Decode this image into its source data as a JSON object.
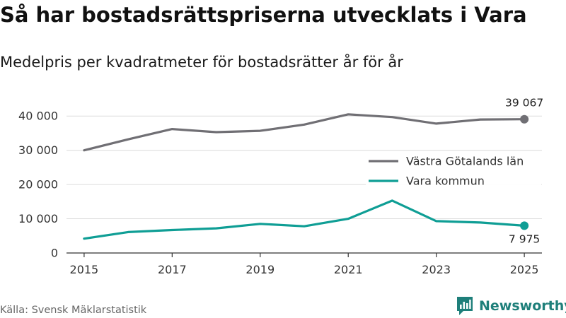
{
  "header": {
    "title": "Så har bostadsrättspriserna utvecklats i Vara",
    "subtitle": "Medelpris per kvadratmeter för bostadsrätter år för år"
  },
  "footer": {
    "source": "Källa: Svensk Mäklarstatistik",
    "brand": "Newsworthy"
  },
  "colors": {
    "series_region": "#706f74",
    "series_municipality": "#0f9e95",
    "grid": "#dcdcdc",
    "brand": "#1e7f7a"
  },
  "chart_data": {
    "type": "line",
    "title": "Så har bostadsrättspriserna utvecklats i Vara",
    "subtitle": "Medelpris per kvadratmeter för bostadsrätter år för år",
    "xlabel": "",
    "ylabel": "",
    "x": [
      2015,
      2016,
      2017,
      2018,
      2019,
      2020,
      2021,
      2022,
      2023,
      2024,
      2025
    ],
    "xticks": [
      2015,
      2017,
      2019,
      2021,
      2023,
      2025
    ],
    "xlim": [
      2014.6,
      2025.4
    ],
    "ylim": [
      0,
      45000
    ],
    "yticks": [
      0,
      10000,
      20000,
      30000,
      40000
    ],
    "ytick_labels": [
      "0",
      "10 000",
      "20 000",
      "30 000",
      "40 000"
    ],
    "grid": true,
    "legend": "right, middle",
    "series": [
      {
        "name": "Västra Götalands län",
        "color": "#706f74",
        "values": [
          30000,
          33200,
          36200,
          35300,
          35700,
          37500,
          40500,
          39700,
          37800,
          39000,
          39067
        ],
        "end_label": "39 067"
      },
      {
        "name": "Vara kommun",
        "color": "#0f9e95",
        "values": [
          4200,
          6100,
          6700,
          7200,
          8500,
          7800,
          10000,
          15300,
          9300,
          8900,
          7975
        ],
        "end_label": "7 975"
      }
    ]
  }
}
